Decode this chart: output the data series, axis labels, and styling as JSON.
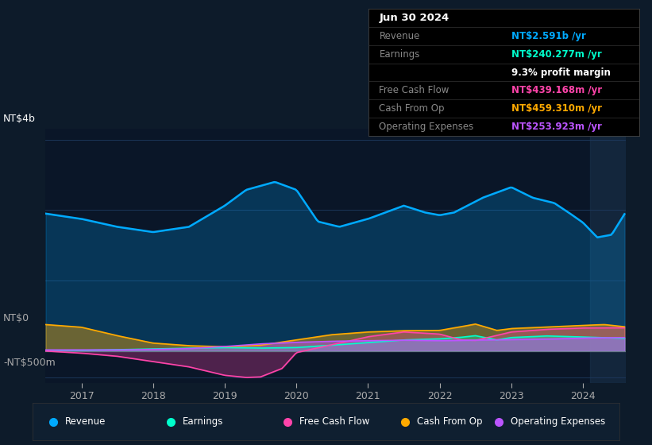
{
  "bg_color": "#0d1b2a",
  "plot_bg_color": "#0a1628",
  "grid_color": "#1e3a5f",
  "y_label_top": "NT$4b",
  "y_label_zero": "NT$0",
  "y_label_bottom": "-NT$500m",
  "x_ticks": [
    2017,
    2018,
    2019,
    2020,
    2021,
    2022,
    2023,
    2024
  ],
  "ylim": [
    -600,
    4200
  ],
  "colors": {
    "revenue": "#00aaff",
    "earnings": "#00ffcc",
    "free_cash_flow": "#ff44aa",
    "cash_from_op": "#ffaa00",
    "operating_expenses": "#bb55ff"
  },
  "tooltip": {
    "date": "Jun 30 2024",
    "revenue_color": "#00aaff",
    "earnings_color": "#00ffcc",
    "fcf_color": "#ff44aa",
    "cashop_color": "#ffaa00",
    "opex_color": "#bb55ff"
  },
  "tlines": [
    {
      "label": "Jun 30 2024",
      "label_color": "white",
      "val": "",
      "val_color": "white",
      "bold_label": true,
      "fs": 9.5
    },
    {
      "label": "Revenue",
      "label_color": "#888888",
      "val": "NT$2.591b /yr",
      "val_color": "#00aaff",
      "bold_label": false,
      "fs": 8.5
    },
    {
      "label": "Earnings",
      "label_color": "#888888",
      "val": "NT$240.277m /yr",
      "val_color": "#00ffcc",
      "bold_label": false,
      "fs": 8.5
    },
    {
      "label": "",
      "label_color": "#888888",
      "val": "9.3% profit margin",
      "val_color": "white",
      "bold_label": false,
      "fs": 8.5
    },
    {
      "label": "Free Cash Flow",
      "label_color": "#888888",
      "val": "NT$439.168m /yr",
      "val_color": "#ff44aa",
      "bold_label": false,
      "fs": 8.5
    },
    {
      "label": "Cash From Op",
      "label_color": "#888888",
      "val": "NT$459.310m /yr",
      "val_color": "#ffaa00",
      "bold_label": false,
      "fs": 8.5
    },
    {
      "label": "Operating Expenses",
      "label_color": "#888888",
      "val": "NT$253.923m /yr",
      "val_color": "#bb55ff",
      "bold_label": false,
      "fs": 8.5
    }
  ],
  "legend": [
    {
      "label": "Revenue",
      "color": "#00aaff"
    },
    {
      "label": "Earnings",
      "color": "#00ffcc"
    },
    {
      "label": "Free Cash Flow",
      "color": "#ff44aa"
    },
    {
      "label": "Cash From Op",
      "color": "#ffaa00"
    },
    {
      "label": "Operating Expenses",
      "color": "#bb55ff"
    }
  ]
}
